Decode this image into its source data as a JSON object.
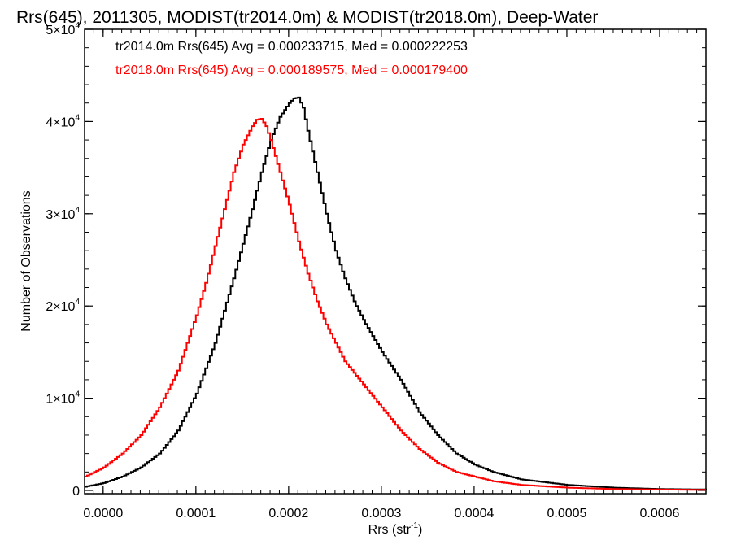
{
  "chart_data": {
    "type": "line",
    "title": "Rrs(645), 2011305, MODIST(tr2014.0m) & MODIST(tr2018.0m), Deep-Water",
    "xlabel": "Rrs (str",
    "xlabel_sup": "-1",
    "xlabel_end": ")",
    "ylabel": "Number of Observations",
    "xlim": [
      -2e-05,
      0.00065
    ],
    "ylim": [
      0,
      50000
    ],
    "x_ticks": [
      {
        "value": 0.0,
        "label": "0.0000"
      },
      {
        "value": 0.0001,
        "label": "0.0001"
      },
      {
        "value": 0.0002,
        "label": "0.0002"
      },
      {
        "value": 0.0003,
        "label": "0.0003"
      },
      {
        "value": 0.0004,
        "label": "0.0004"
      },
      {
        "value": 0.0005,
        "label": "0.0005"
      },
      {
        "value": 0.0006,
        "label": "0.0006"
      }
    ],
    "y_ticks": [
      {
        "value": 0,
        "label": "0"
      },
      {
        "value": 10000,
        "label": "1×10",
        "sup": "4"
      },
      {
        "value": 20000,
        "label": "2×10",
        "sup": "4"
      },
      {
        "value": 30000,
        "label": "3×10",
        "sup": "4"
      },
      {
        "value": 40000,
        "label": "4×10",
        "sup": "4"
      },
      {
        "value": 50000,
        "label": "5×10",
        "sup": "4"
      }
    ],
    "grid": false,
    "step": true,
    "annotations": [
      {
        "text": "tr2014.0m Rrs(645) Avg = 0.000233715, Med = 0.000222253",
        "color": "#000000"
      },
      {
        "text": "tr2018.0m Rrs(645) Avg = 0.000189575, Med = 0.000179400",
        "color": "#ff0000"
      }
    ],
    "series": [
      {
        "color": "#000000",
        "x": [
          -2e-05,
          0.0,
          2e-05,
          4e-05,
          6e-05,
          8e-05,
          0.0001,
          0.00012,
          0.00014,
          0.00016,
          0.00017,
          0.00018,
          0.00019,
          0.0002,
          0.000205,
          0.00021,
          0.000215,
          0.00022,
          0.00023,
          0.00024,
          0.00025,
          0.00026,
          0.00027,
          0.00028,
          0.0003,
          0.00032,
          0.00034,
          0.00036,
          0.00038,
          0.0004,
          0.00042,
          0.00045,
          0.0005,
          0.00055,
          0.0006,
          0.00065
        ],
        "values": [
          400,
          800,
          1500,
          2500,
          4000,
          6500,
          10500,
          16000,
          23000,
          30500,
          34500,
          38000,
          40500,
          42000,
          42500,
          42600,
          41500,
          39000,
          34500,
          30000,
          26000,
          23000,
          20500,
          18500,
          15000,
          12000,
          8500,
          6000,
          4000,
          2800,
          2000,
          1200,
          600,
          300,
          150,
          100
        ]
      },
      {
        "color": "#ff0000",
        "x": [
          -2e-05,
          0.0,
          2e-05,
          4e-05,
          6e-05,
          8e-05,
          0.0001,
          0.00011,
          0.00012,
          0.00013,
          0.00014,
          0.00015,
          0.00016,
          0.000165,
          0.00017,
          0.000175,
          0.00018,
          0.00019,
          0.0002,
          0.00021,
          0.00022,
          0.00023,
          0.00024,
          0.00025,
          0.00026,
          0.00028,
          0.0003,
          0.00032,
          0.00034,
          0.00036,
          0.00038,
          0.0004,
          0.00042,
          0.00045,
          0.0005,
          0.00055,
          0.0006,
          0.00065
        ],
        "values": [
          1500,
          2500,
          4000,
          6000,
          9000,
          13000,
          19000,
          22500,
          26500,
          30500,
          34500,
          37500,
          39500,
          40200,
          40300,
          39500,
          38000,
          34500,
          31000,
          27000,
          23500,
          20500,
          18000,
          16000,
          14000,
          11500,
          9000,
          6500,
          4500,
          3000,
          2000,
          1500,
          1000,
          600,
          300,
          150,
          100,
          60
        ]
      }
    ]
  }
}
